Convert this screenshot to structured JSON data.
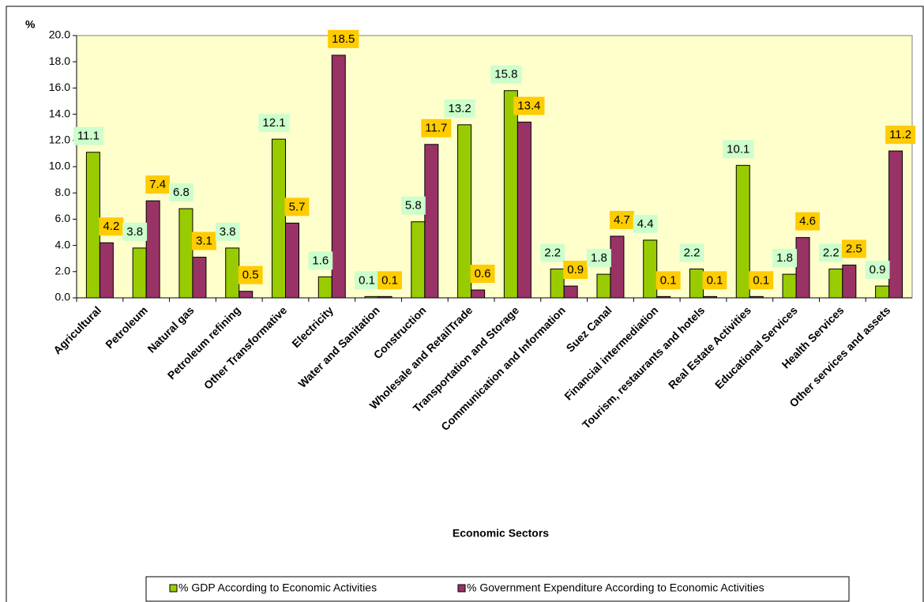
{
  "chart_data": {
    "type": "bar",
    "y_label": "%",
    "x_label": "Economic Sectors",
    "categories": [
      "Agricultural",
      "Petroleum",
      "Natural gas",
      "Petroleum refining",
      "Other Transformative",
      "Electricity",
      "Water and Sanitation",
      "Construction",
      "Wholesale and RetailTrade",
      "Transportation and Storage",
      "Communication and Information",
      "Suez Canal",
      "Financial intermediation",
      "Tourism, restaurants and hotels",
      "Real Estate Activities",
      "Educational Services",
      "Health Services",
      "Other services and assets"
    ],
    "series": [
      {
        "name": "% GDP According to Economic Activities",
        "color": "#99cc00",
        "label_color": "#ccffcc",
        "values": [
          11.1,
          3.8,
          6.8,
          3.8,
          12.1,
          1.6,
          0.1,
          5.8,
          13.2,
          15.8,
          2.2,
          1.8,
          4.4,
          2.2,
          10.1,
          1.8,
          2.2,
          0.9
        ]
      },
      {
        "name": "% Government Expenditure According to Economic Activities",
        "color": "#993366",
        "label_color": "#ffcc00",
        "values": [
          4.2,
          7.4,
          3.1,
          0.5,
          5.7,
          18.5,
          0.1,
          11.7,
          0.6,
          13.4,
          0.9,
          4.7,
          0.1,
          0.1,
          0.1,
          4.6,
          2.5,
          11.2
        ]
      }
    ],
    "ylim": [
      0,
      20
    ],
    "yticks": [
      {
        "value": 0,
        "label": "0.0"
      },
      {
        "value": 2,
        "label": "2.0"
      },
      {
        "value": 4,
        "label": "4.0"
      },
      {
        "value": 6,
        "label": "6.0"
      },
      {
        "value": 8,
        "label": "8.0"
      },
      {
        "value": 10,
        "label": "10.0"
      },
      {
        "value": 12,
        "label": "12.0"
      },
      {
        "value": 14,
        "label": "14.0"
      },
      {
        "value": 16,
        "label": "16.0"
      },
      {
        "value": 18,
        "label": "18.0"
      },
      {
        "value": 20,
        "label": "20.0"
      }
    ],
    "grid": false,
    "legend": "bottom",
    "plot_background": "#ffffcc"
  }
}
